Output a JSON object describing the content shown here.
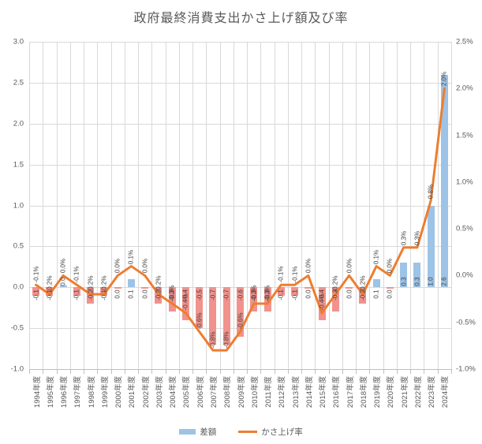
{
  "title": "政府最終消費支出かさ上げ額及び率",
  "legend": {
    "bar_label": "差額",
    "line_label": "かさ上げ率"
  },
  "colors": {
    "bar_positive": "#9DC3E6",
    "bar_negative": "#F2928C",
    "line": "#ED7D31",
    "grid": "#D9D9D9",
    "axis_line": "#BFBFBF",
    "text": "#595959",
    "data_label": "#404040"
  },
  "left_axis": {
    "max": 3.0,
    "min": -1.0,
    "ticks": [
      {
        "v": 3.0,
        "label": "3.0"
      },
      {
        "v": 2.5,
        "label": "2.5"
      },
      {
        "v": 2.0,
        "label": "2.0"
      },
      {
        "v": 1.5,
        "label": "1.5"
      },
      {
        "v": 1.0,
        "label": "1.0"
      },
      {
        "v": 0.5,
        "label": "0.5"
      },
      {
        "v": 0.0,
        "label": "0.0"
      },
      {
        "v": -0.5,
        "label": "-0.5"
      },
      {
        "v": -1.0,
        "label": "-1.0"
      }
    ]
  },
  "right_axis": {
    "max": 2.5,
    "min": -1.0,
    "ticks": [
      {
        "v": 2.5,
        "label": "2.5%"
      },
      {
        "v": 2.0,
        "label": "2.0%"
      },
      {
        "v": 1.5,
        "label": "1.5%"
      },
      {
        "v": 1.0,
        "label": "1.0%"
      },
      {
        "v": 0.5,
        "label": "0.5%"
      },
      {
        "v": 0.0,
        "label": "0.0%"
      },
      {
        "v": -0.5,
        "label": "-0.5%"
      },
      {
        "v": -1.0,
        "label": "-1.0%"
      }
    ]
  },
  "chart_data": {
    "type": "bar+line combo",
    "title": "政府最終消費支出かさ上げ額及び率",
    "legend_position": "bottom",
    "categories": [
      "1994年度",
      "1995年度",
      "1996年度",
      "1997年度",
      "1998年度",
      "1999年度",
      "2000年度",
      "2001年度",
      "2002年度",
      "2003年度",
      "2004年度",
      "2005年度",
      "2006年度",
      "2007年度",
      "2008年度",
      "2009年度",
      "2010年度",
      "2011年度",
      "2012年度",
      "2013年度",
      "2014年度",
      "2015年度",
      "2016年度",
      "2017年度",
      "2018年度",
      "2019年度",
      "2020年度",
      "2021年度",
      "2022年度",
      "2023年度",
      "2024年度"
    ],
    "series": [
      {
        "name": "差額",
        "type": "bar",
        "axis": "left",
        "values": [
          -0.1,
          -0.1,
          0.02,
          -0.1,
          -0.2,
          -0.1,
          -0.02,
          0.1,
          -0.02,
          -0.2,
          -0.3,
          -0.4,
          -0.5,
          -0.7,
          -0.7,
          -0.6,
          -0.3,
          -0.3,
          -0.1,
          -0.1,
          -0.02,
          -0.4,
          -0.3,
          -0.02,
          -0.2,
          0.1,
          -0.02,
          0.3,
          0.3,
          1.0,
          2.6
        ],
        "labels": [
          "-0.1",
          "-0.1",
          "0.0",
          "-0.1",
          "-0.2",
          "-0.1",
          "0.0",
          "0.1",
          "0.0",
          "-0.2",
          "-0.3",
          "-0.4",
          "-0.5",
          "-0.7",
          "-0.7",
          "-0.6",
          "-0.3",
          "-0.3",
          "-0.1",
          "-0.1",
          "0.0",
          "-0.4",
          "-0.3",
          "0.0",
          "-0.2",
          "0.1",
          "0.0",
          "0.3",
          "0.3",
          "1.0",
          "2.6"
        ]
      },
      {
        "name": "かさ上げ率",
        "type": "line",
        "axis": "right",
        "unit": "%",
        "values": [
          -0.1,
          -0.2,
          0.0,
          -0.1,
          -0.2,
          -0.2,
          0.0,
          0.1,
          0.0,
          -0.2,
          -0.3,
          -0.4,
          -0.6,
          -0.8,
          -0.8,
          -0.6,
          -0.3,
          -0.3,
          -0.1,
          -0.1,
          0.0,
          -0.4,
          -0.2,
          0.0,
          -0.2,
          0.1,
          0.0,
          0.3,
          0.3,
          0.8,
          2.0
        ],
        "labels": [
          "-0.1%",
          "-0.2%",
          "0.0%",
          "-0.1%",
          "-0.2%",
          "-0.2%",
          "0.0%",
          "0.1%",
          "0.0%",
          "-0.2%",
          "-0.3%",
          "-0.4%",
          "-0.6%",
          "-0.8%",
          "-0.8%",
          "-0.6%",
          "-0.3%",
          "-0.3%",
          "-0.1%",
          "-0.1%",
          "0.0%",
          "-0.4%",
          "-0.2%",
          "0.0%",
          "-0.2%",
          "0.1%",
          "0.0%",
          "0.3%",
          "0.3%",
          "0.8%",
          "2.0%"
        ]
      }
    ]
  }
}
